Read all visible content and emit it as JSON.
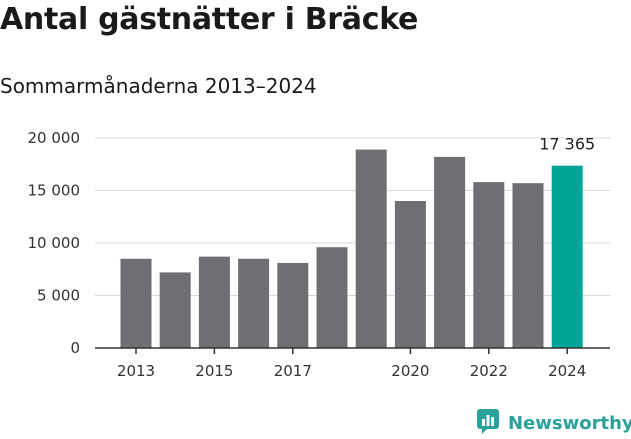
{
  "header": {
    "title": "Antal gästnätter i Bräcke",
    "subtitle": "Sommarmånaderna 2013–2024"
  },
  "brand": {
    "name": "Newsworthy",
    "icon": "newsworthy-bar-chart-icon",
    "color": "#2aa19a"
  },
  "colors": {
    "bar": "#6f6e72",
    "highlight": "#00a596",
    "grid": "#d9d9d9",
    "axis": "#333333"
  },
  "chart_data": {
    "type": "bar",
    "title": "Antal gästnätter i Bräcke",
    "subtitle": "Sommarmånaderna 2013–2024",
    "categories": [
      "2013",
      "2014",
      "2015",
      "2016",
      "2017",
      "2018",
      "2019",
      "2020",
      "2021",
      "2022",
      "2023",
      "2024"
    ],
    "values": [
      8500,
      7200,
      8700,
      8500,
      8100,
      9600,
      18900,
      14000,
      18200,
      15800,
      15700,
      17365
    ],
    "x_tick_labels": [
      "2013",
      "2015",
      "2017",
      "2020",
      "2022",
      "2024"
    ],
    "y_ticks": [
      "0",
      "5 000",
      "10 000",
      "15 000",
      "20 000"
    ],
    "ylim": [
      0,
      20000
    ],
    "highlight_category": "2024",
    "highlight_label": "17 365",
    "grid": true,
    "legend": "none"
  }
}
